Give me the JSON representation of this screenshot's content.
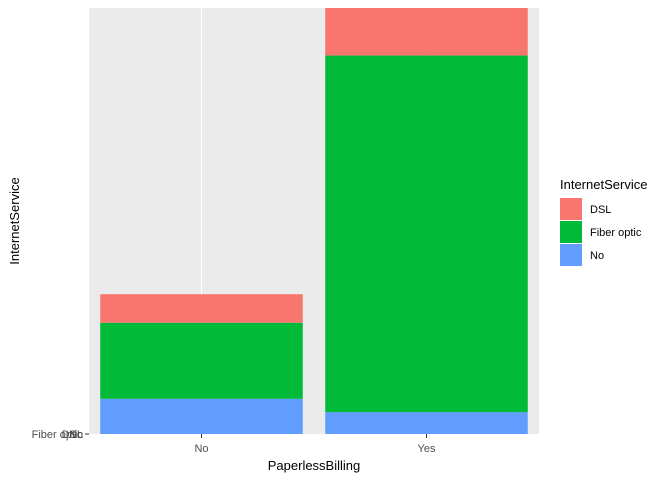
{
  "chart_data": {
    "type": "bar",
    "stacked": true,
    "categories": [
      "No",
      "Yes"
    ],
    "series": [
      {
        "name": "DSL",
        "color": "#F8766D",
        "values": [
          3.0,
          5.0
        ]
      },
      {
        "name": "Fiber optic",
        "color": "#00BA38",
        "values": [
          8.0,
          37.5
        ]
      },
      {
        "name": "No",
        "color": "#619CFF",
        "values": [
          3.7,
          2.3
        ]
      }
    ],
    "stack_order_bottom_to_top": [
      "No",
      "Fiber optic",
      "DSL"
    ],
    "xlabel": "PaperlessBilling",
    "ylabel": "InternetService",
    "y_tick_labels": [
      "Fiber optic",
      "DSL",
      "No"
    ],
    "ylim": [
      0,
      44.8
    ],
    "legend": {
      "title": "InternetService",
      "position": "right"
    },
    "grid": true,
    "panel_background": "#EBEBEB"
  }
}
